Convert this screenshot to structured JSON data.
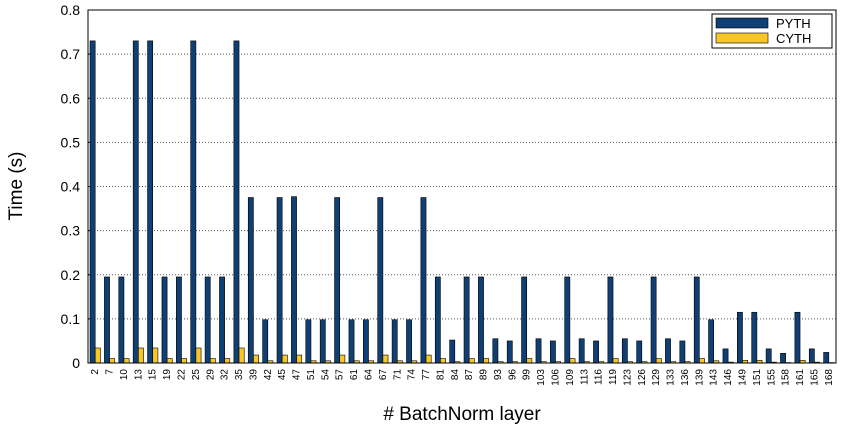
{
  "chart_data": {
    "type": "bar",
    "xlabel": "# BatchNorm layer",
    "ylabel": "Time (s)",
    "categories": [
      "2",
      "7",
      "10",
      "13",
      "15",
      "19",
      "22",
      "25",
      "29",
      "32",
      "35",
      "39",
      "42",
      "45",
      "47",
      "51",
      "54",
      "57",
      "61",
      "64",
      "67",
      "71",
      "74",
      "77",
      "81",
      "84",
      "87",
      "89",
      "93",
      "96",
      "99",
      "103",
      "106",
      "109",
      "113",
      "116",
      "119",
      "123",
      "126",
      "129",
      "133",
      "136",
      "139",
      "143",
      "146",
      "149",
      "151",
      "155",
      "158",
      "161",
      "165",
      "168"
    ],
    "series": [
      {
        "name": "PYTH",
        "color": "#103f73",
        "values": [
          0.73,
          0.195,
          0.195,
          0.73,
          0.73,
          0.195,
          0.195,
          0.73,
          0.195,
          0.195,
          0.73,
          0.375,
          0.098,
          0.375,
          0.377,
          0.098,
          0.098,
          0.375,
          0.098,
          0.098,
          0.375,
          0.098,
          0.098,
          0.375,
          0.195,
          0.052,
          0.195,
          0.195,
          0.055,
          0.05,
          0.195,
          0.055,
          0.05,
          0.195,
          0.055,
          0.05,
          0.195,
          0.055,
          0.05,
          0.195,
          0.055,
          0.05,
          0.195,
          0.098,
          0.032,
          0.115,
          0.115,
          0.032,
          0.022,
          0.115,
          0.032,
          0.024
        ]
      },
      {
        "name": "CYTH",
        "color": "#f7c72a",
        "values": [
          0.034,
          0.01,
          0.01,
          0.034,
          0.034,
          0.01,
          0.01,
          0.034,
          0.01,
          0.01,
          0.034,
          0.018,
          0.005,
          0.018,
          0.018,
          0.005,
          0.005,
          0.018,
          0.005,
          0.005,
          0.018,
          0.005,
          0.005,
          0.018,
          0.01,
          0.003,
          0.01,
          0.01,
          0.003,
          0.003,
          0.01,
          0.003,
          0.003,
          0.01,
          0.003,
          0.003,
          0.01,
          0.003,
          0.003,
          0.01,
          0.003,
          0.003,
          0.01,
          0.005,
          0.002,
          0.006,
          0.006,
          0.002,
          0.001,
          0.006,
          0.002,
          0.001
        ]
      }
    ],
    "ylim": [
      0,
      0.8
    ],
    "yticks": [
      0,
      0.1,
      0.2,
      0.3,
      0.4,
      0.5,
      0.6,
      0.7,
      0.8
    ],
    "grid": true,
    "legend": "upper right"
  }
}
